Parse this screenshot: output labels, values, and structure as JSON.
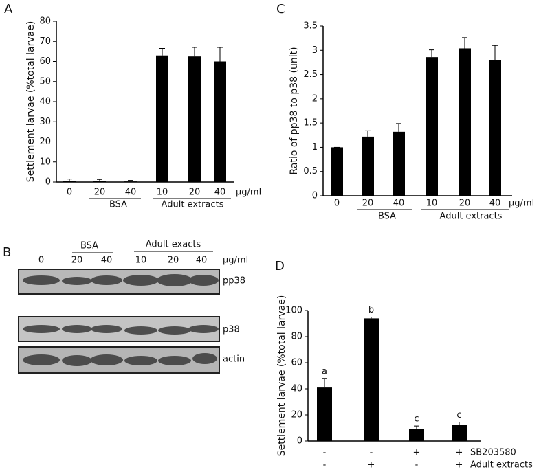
{
  "chart_data": [
    {
      "type": "bar",
      "panel": "A",
      "ylabel": "Settlement larvae (%total larvae)",
      "categories": [
        "0",
        "20",
        "40",
        "10",
        "20",
        "40"
      ],
      "unit": "μg/ml",
      "groups": [
        "BSA",
        "Adult extracts"
      ],
      "values": [
        0.5,
        0.5,
        0.3,
        63,
        62.5,
        60
      ],
      "errors": [
        1,
        0.8,
        0.5,
        3.5,
        4.5,
        7
      ],
      "color": "#000000",
      "ylim": [
        0,
        80
      ],
      "yticks": [
        0,
        10,
        20,
        30,
        40,
        50,
        60,
        70,
        80
      ]
    },
    {
      "type": "bar",
      "panel": "C",
      "ylabel": "Ratio of pp38 to p38 (unit)",
      "categories": [
        "0",
        "20",
        "40",
        "10",
        "20",
        "40"
      ],
      "unit": "μg/ml",
      "groups": [
        "BSA",
        "Adult extracts"
      ],
      "values": [
        1,
        1.22,
        1.32,
        2.86,
        3.04,
        2.8
      ],
      "errors": [
        0,
        0.12,
        0.17,
        0.15,
        0.22,
        0.3
      ],
      "color": "#000000",
      "ylim": [
        0,
        3.5
      ],
      "yticks": [
        0,
        0.5,
        1,
        1.5,
        2,
        2.5,
        3,
        3.5
      ]
    },
    {
      "type": "bar",
      "panel": "D",
      "ylabel": "Settlement larvae (%total larvae)",
      "values": [
        41,
        94,
        9,
        12.5
      ],
      "errors": [
        7,
        1,
        2.5,
        2
      ],
      "annotations": [
        "a",
        "b",
        "c",
        "c"
      ],
      "treatments": [
        {
          "name": "SB203580",
          "signs": [
            "-",
            "-",
            "+",
            "+"
          ]
        },
        {
          "name": "Adult extracts",
          "signs": [
            "-",
            "+",
            "-",
            "+"
          ]
        }
      ],
      "color": "#000000",
      "ylim": [
        0,
        100
      ],
      "yticks": [
        0,
        20,
        40,
        60,
        80,
        100
      ]
    }
  ],
  "blot": {
    "panel": "B",
    "groups": [
      "BSA",
      "Adult exacts"
    ],
    "lanes": [
      "0",
      "20",
      "40",
      "10",
      "20",
      "40"
    ],
    "unit": "μg/ml",
    "bands": [
      "pp38",
      "p38",
      "actin"
    ]
  }
}
